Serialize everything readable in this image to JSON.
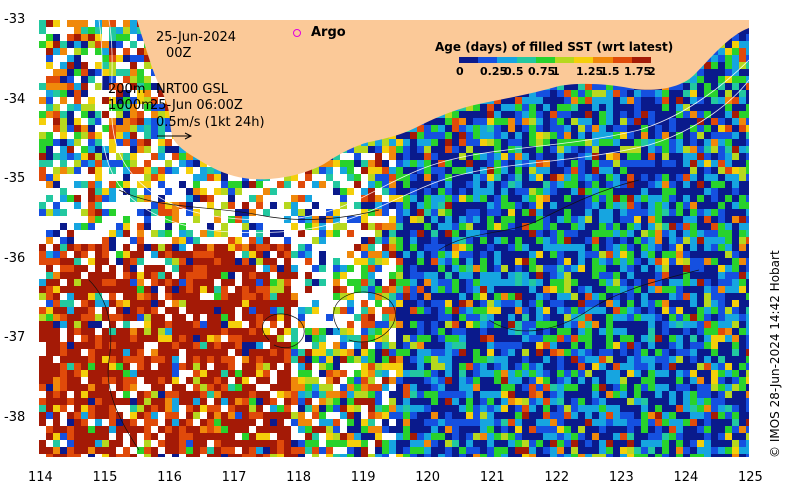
{
  "map": {
    "date_label": "25-Jun-2024",
    "time_label": "00Z",
    "argo_label": "Argo",
    "contour_label_1": "200m",
    "contour_label_2": "1000m",
    "product_label": "NRT00 GSL",
    "product_time": "25-Jun 06:00Z",
    "scale_label": "0.5m/s (1kt 24h)",
    "legend_title": "Age (days) of filled SST (wrt latest)",
    "legend_ticks": [
      "0",
      "0.25",
      "0.5",
      "0.75",
      "1",
      "1.25",
      "1.5",
      "1.75",
      "2"
    ],
    "legend_colors": [
      "#0a1a8c",
      "#1550e0",
      "#16a5e0",
      "#22c8a0",
      "#28d22c",
      "#b6d81e",
      "#f4cf0a",
      "#f0880a",
      "#e04a0a",
      "#a41a06"
    ],
    "land_color": "#fbc998",
    "x_ticks": [
      "114",
      "115",
      "116",
      "117",
      "118",
      "119",
      "120",
      "121",
      "122",
      "123",
      "124",
      "125"
    ],
    "y_ticks": [
      "-33",
      "-34",
      "-35",
      "-36",
      "-37",
      "-38"
    ],
    "credit": "© IMOS 28-Jun-2024 14:42 Hobart"
  }
}
